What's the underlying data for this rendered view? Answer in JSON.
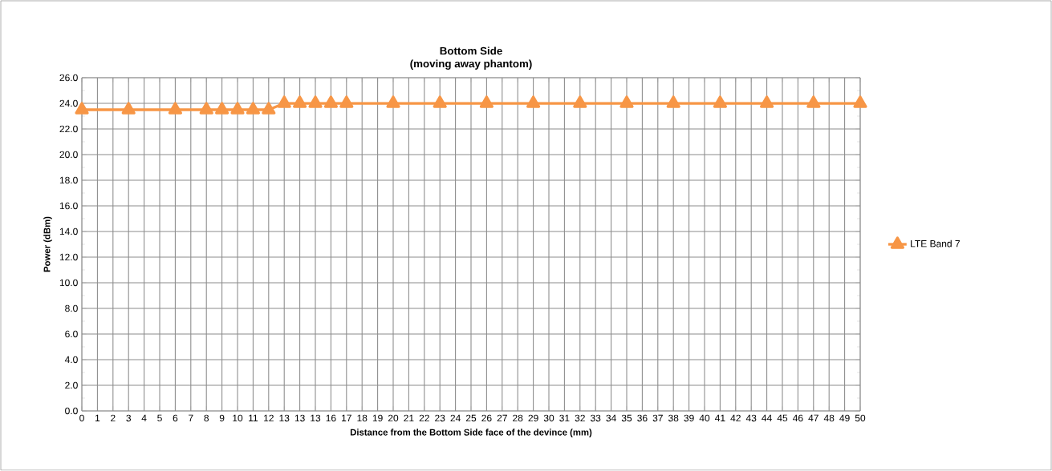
{
  "chart_data": {
    "type": "line",
    "title": "Bottom Side",
    "subtitle": "(moving away phantom)",
    "xlabel": "Distance from the Bottom Side  face of the devince (mm)",
    "ylabel": "Power (dBm)",
    "categories": [
      "0",
      "1",
      "2",
      "3",
      "4",
      "5",
      "6",
      "7",
      "8",
      "9",
      "10",
      "11",
      "12",
      "13",
      "13",
      "13",
      "16",
      "17",
      "18",
      "19",
      "20",
      "21",
      "22",
      "23",
      "24",
      "25",
      "26",
      "27",
      "28",
      "29",
      "30",
      "31",
      "32",
      "33",
      "34",
      "35",
      "36",
      "37",
      "38",
      "39",
      "40",
      "41",
      "42",
      "43",
      "44",
      "45",
      "46",
      "47",
      "48",
      "49",
      "50"
    ],
    "series": [
      {
        "name": "LTE Band 7",
        "color": "#f79646",
        "values": [
          23.5,
          null,
          null,
          23.5,
          null,
          null,
          23.5,
          null,
          23.5,
          23.5,
          23.5,
          23.5,
          23.5,
          24.0,
          24.0,
          24.0,
          24.0,
          24.0,
          null,
          null,
          24.0,
          null,
          null,
          24.0,
          null,
          null,
          24.0,
          null,
          null,
          24.0,
          null,
          null,
          24.0,
          null,
          null,
          24.0,
          null,
          null,
          24.0,
          null,
          null,
          24.0,
          null,
          null,
          24.0,
          null,
          null,
          24.0,
          null,
          null,
          24.0
        ]
      }
    ],
    "ylim": [
      0,
      26
    ],
    "yticks": [
      {
        "value": 0,
        "label": "0.0"
      },
      {
        "value": 2,
        "label": "2.0"
      },
      {
        "value": 4,
        "label": "4.0"
      },
      {
        "value": 6,
        "label": "6.0"
      },
      {
        "value": 8,
        "label": "8.0"
      },
      {
        "value": 10,
        "label": "10.0"
      },
      {
        "value": 12,
        "label": "12.0"
      },
      {
        "value": 14,
        "label": "14.0"
      },
      {
        "value": 16,
        "label": "16.0"
      },
      {
        "value": 18,
        "label": "18.0"
      },
      {
        "value": 20,
        "label": "20.0"
      },
      {
        "value": 22,
        "label": "22.0"
      },
      {
        "value": 24,
        "label": "24.0"
      },
      {
        "value": 26,
        "label": "26.0"
      }
    ],
    "grid": true,
    "legend": "right",
    "marker": "triangle",
    "line_style": "solid"
  }
}
